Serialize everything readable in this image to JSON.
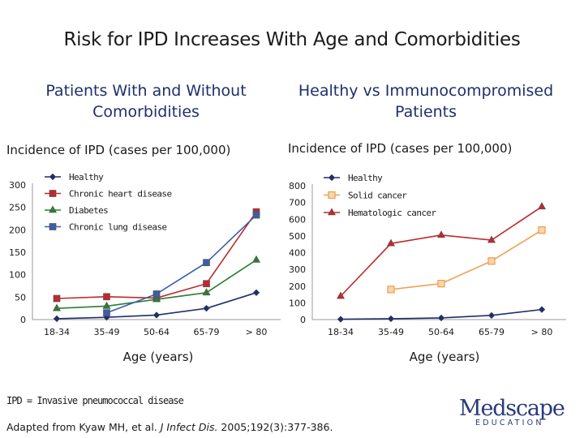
{
  "title": "Risk for IPD Increases With Age and Comorbidities",
  "footnote": "IPD = Invasive pneumococcal disease",
  "citation": {
    "prefix": "Adapted from Kyaw MH, et al. ",
    "journal": "J Infect Dis.",
    "suffix": " 2005;192(3):377-386."
  },
  "logo": {
    "word": "Medscape",
    "sub": "EDUCATION"
  },
  "chart_data": [
    {
      "type": "line",
      "title": "Patients With and Without Comorbidities",
      "ylabel": "Incidence of IPD (cases per 100,000)",
      "xlabel": "Age (years)",
      "categories": [
        "18-34",
        "35-49",
        "50-64",
        "65-79",
        "> 80"
      ],
      "ylim": [
        0,
        300
      ],
      "yticks": [
        0,
        50,
        100,
        150,
        200,
        250,
        300
      ],
      "legend_position": "top-left",
      "series": [
        {
          "name": "Healthy",
          "values": [
            2,
            5,
            10,
            25,
            60
          ],
          "color": "#1f2f6b",
          "marker": "diamond"
        },
        {
          "name": "Chronic heart disease",
          "values": [
            47,
            51,
            48,
            80,
            240
          ],
          "color": "#c0282d",
          "marker": "square"
        },
        {
          "name": "Diabetes",
          "values": [
            25,
            30,
            45,
            60,
            133
          ],
          "color": "#2e7d32",
          "marker": "triangle"
        },
        {
          "name": "Chronic lung disease",
          "values": [
            null,
            15,
            57,
            127,
            233
          ],
          "color": "#3a5ea8",
          "marker": "square"
        }
      ]
    },
    {
      "type": "line",
      "title": "Healthy vs Immunocompromised Patients",
      "ylabel": "Incidence of IPD (cases per 100,000)",
      "xlabel": "Age (years)",
      "categories": [
        "18-34",
        "35-49",
        "50-64",
        "65-79",
        "> 80"
      ],
      "ylim": [
        0,
        800
      ],
      "yticks": [
        0,
        100,
        200,
        300,
        400,
        500,
        600,
        700,
        800
      ],
      "legend_position": "top-left",
      "series": [
        {
          "name": "Healthy",
          "values": [
            2,
            5,
            10,
            25,
            60
          ],
          "color": "#1f2f6b",
          "marker": "diamond"
        },
        {
          "name": "Solid cancer",
          "values": [
            null,
            180,
            215,
            350,
            535
          ],
          "color": "#f0a050",
          "marker": "square-open"
        },
        {
          "name": "Hematologic cancer",
          "values": [
            140,
            455,
            505,
            475,
            675
          ],
          "color": "#c0282d",
          "marker": "triangle"
        }
      ]
    }
  ]
}
